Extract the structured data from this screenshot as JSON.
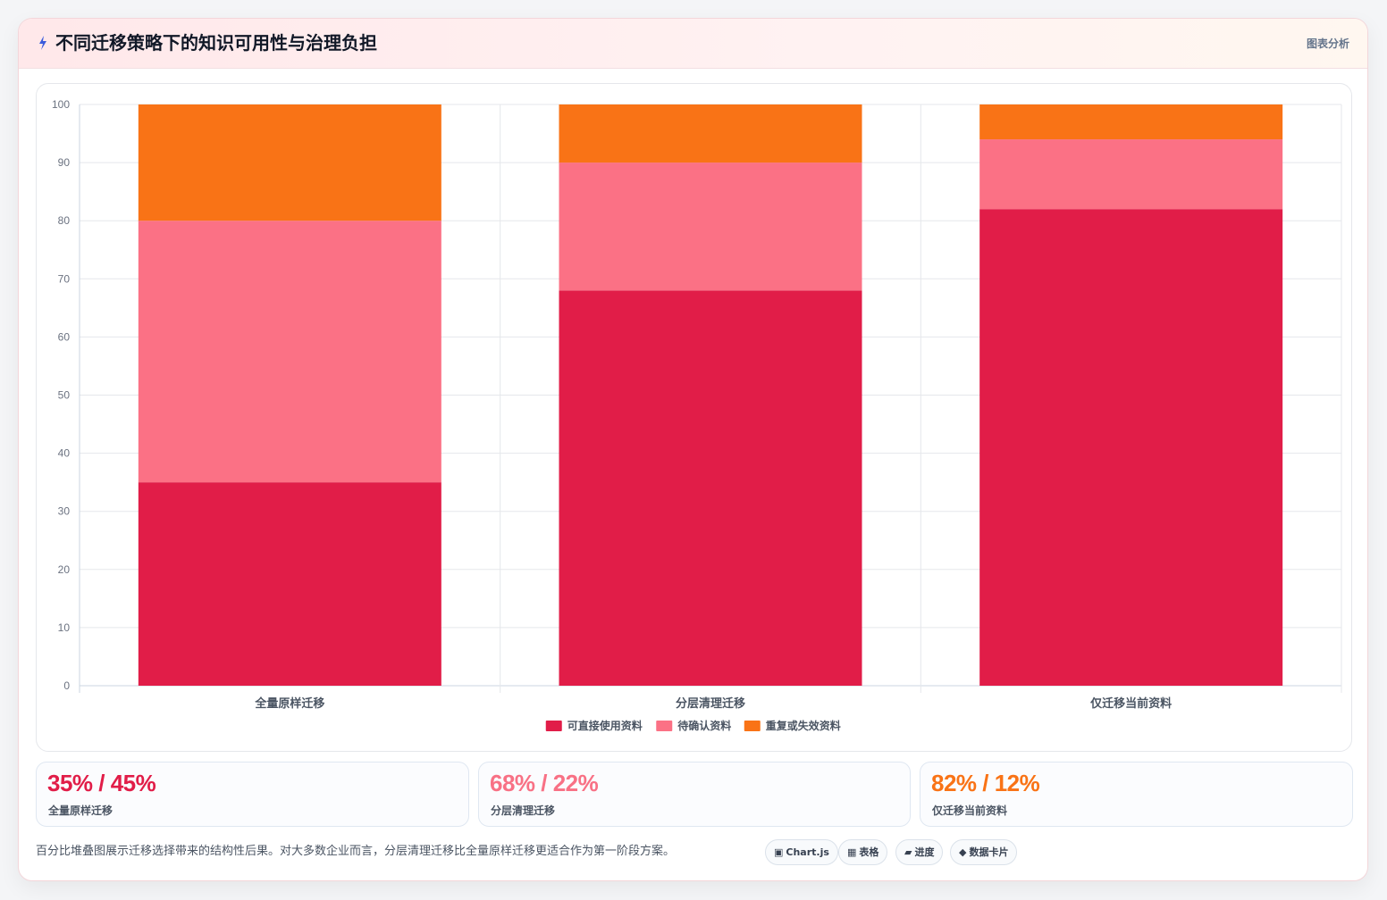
{
  "header": {
    "title": "不同迁移策略下的知识可用性与治理负担",
    "tag": "图表分析",
    "icon": "bolt-icon"
  },
  "chart_data": {
    "type": "bar",
    "stacked": true,
    "title": "",
    "xlabel": "",
    "ylabel": "",
    "categories": [
      "全量原样迁移",
      "分层清理迁移",
      "仅迁移当前资料"
    ],
    "series": [
      {
        "name": "可直接使用资料",
        "values": [
          35,
          68,
          82
        ],
        "color": "#e11d48"
      },
      {
        "name": "待确认资料",
        "values": [
          45,
          22,
          12
        ],
        "color": "#fb7185"
      },
      {
        "name": "重复或失效资料",
        "values": [
          20,
          10,
          6
        ],
        "color": "#f97316"
      }
    ],
    "ylim": [
      0,
      100
    ],
    "yticks": [
      0,
      10,
      20,
      30,
      40,
      50,
      60,
      70,
      80,
      90,
      100
    ],
    "grid": true,
    "legend_position": "bottom"
  },
  "stats": [
    {
      "value": "35% / 45%",
      "label": "全量原样迁移",
      "color": "#e11d48"
    },
    {
      "value": "68% / 22%",
      "label": "分层清理迁移",
      "color": "#f87185"
    },
    {
      "value": "82% / 12%",
      "label": "仅迁移当前资料",
      "color": "#f97316"
    }
  ],
  "note": "百分比堆叠图展示迁移选择带来的结构性后果。对大多数企业而言，分层清理迁移比全量原样迁移更适合作为第一阶段方案。",
  "pills": [
    {
      "icon": "▣",
      "label": "Chart.js"
    },
    {
      "icon": "▦",
      "label": "表格"
    },
    {
      "icon": "▰",
      "label": "进度"
    },
    {
      "icon": "◆",
      "label": "数据卡片"
    }
  ]
}
